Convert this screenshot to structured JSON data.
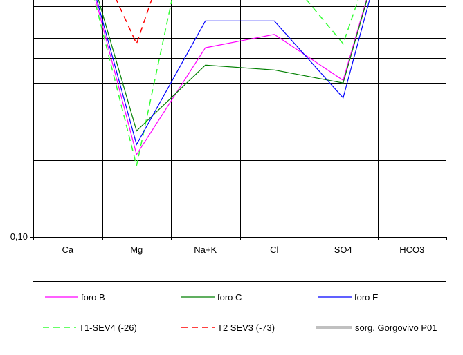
{
  "chart_data": {
    "type": "line",
    "title": "",
    "xlabel": "",
    "ylabel": "",
    "categories": [
      "Ca",
      "Mg",
      "Na+K",
      "Cl",
      "SO4",
      "HCO3"
    ],
    "y_scale": "log",
    "ylim": [
      0.1,
      3.5
    ],
    "y_tick_labels": [
      {
        "value": 0.1,
        "label": "0,10"
      }
    ],
    "grid": true,
    "legend_position": "bottom",
    "series": [
      {
        "name": "foro B",
        "color": "#ff00ff",
        "dash": "solid",
        "width": 1.2,
        "values": [
          2.2,
          0.21,
          0.55,
          0.62,
          0.41,
          3.5
        ]
      },
      {
        "name": "foro C",
        "color": "#007f00",
        "dash": "solid",
        "width": 1.2,
        "values": [
          2.2,
          0.26,
          0.47,
          0.45,
          0.4,
          3.5
        ]
      },
      {
        "name": "foro E",
        "color": "#0000ff",
        "dash": "solid",
        "width": 1.2,
        "values": [
          2.2,
          0.23,
          0.7,
          0.7,
          0.35,
          3.5
        ]
      },
      {
        "name": "T1-SEV4 (-26)",
        "color": "#33ff33",
        "dash": "dashed",
        "width": 1.5,
        "values": [
          2.2,
          0.19,
          3.5,
          1.2,
          0.57,
          3.5
        ]
      },
      {
        "name": "T2 SEV3 (-73)",
        "color": "#ff0000",
        "dash": "dashed",
        "width": 1.5,
        "values": [
          2.2,
          0.57,
          3.5,
          3.5,
          1.45,
          3.5
        ]
      },
      {
        "name": "sorg. Gorgovivo P01",
        "color": "#c0c0c0",
        "dash": "solid",
        "width": 4,
        "values": [
          2.2,
          3.5,
          1.0,
          0.98,
          3.5,
          3.5
        ]
      }
    ]
  }
}
